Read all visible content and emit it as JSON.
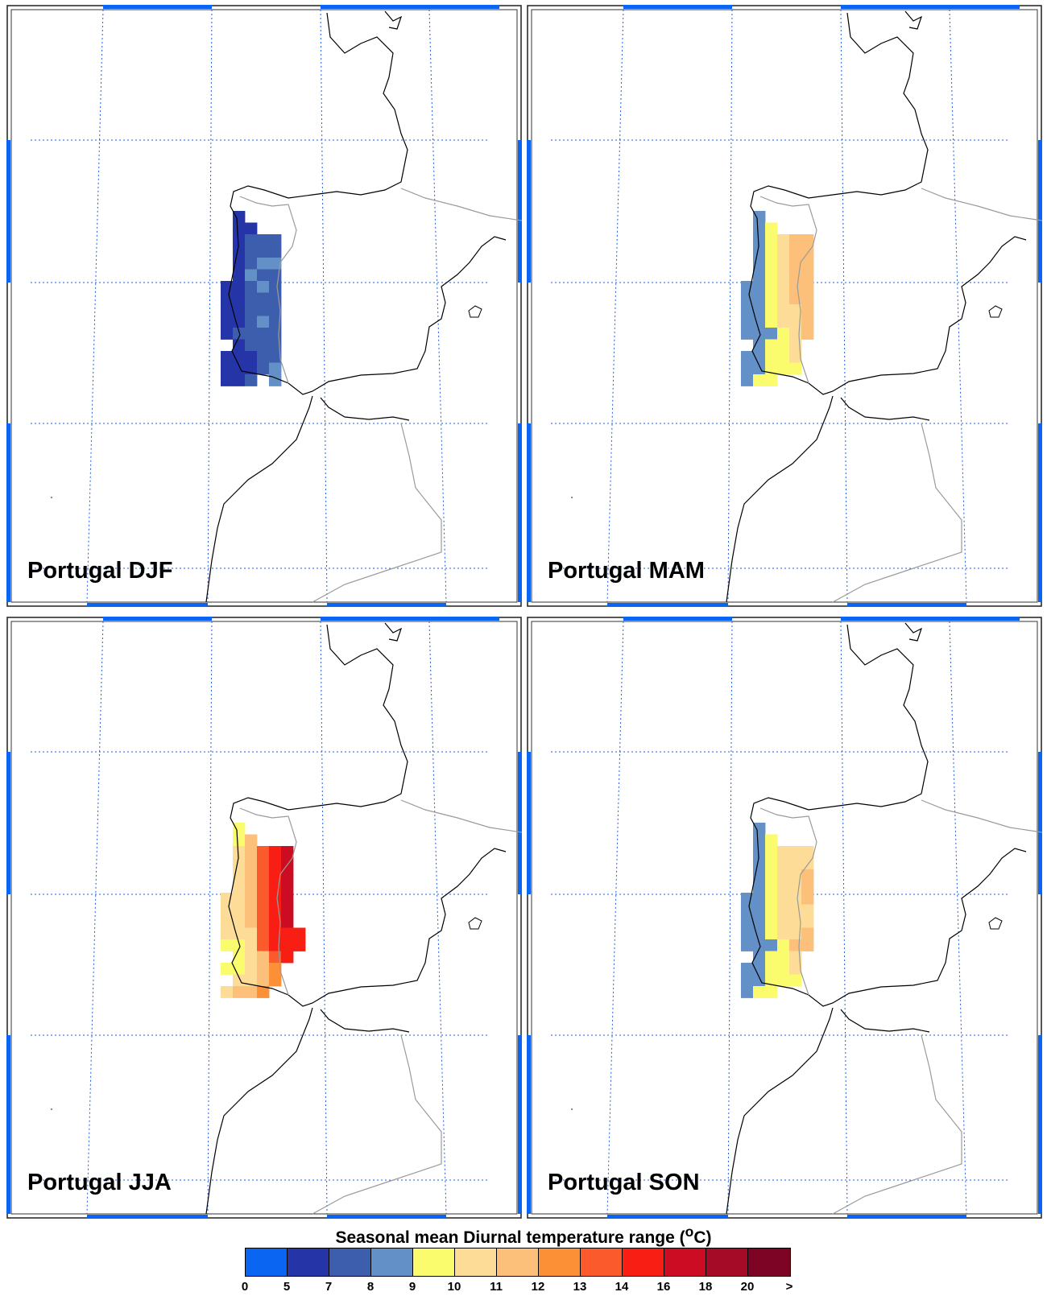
{
  "panels": [
    {
      "label": "Portugal DJF"
    },
    {
      "label": "Portugal MAM"
    },
    {
      "label": "Portugal JJA"
    },
    {
      "label": "Portugal SON"
    }
  ],
  "legend": {
    "title_main": "Seasonal mean Diurnal temperature range (",
    "title_sup": "o",
    "title_end": "C)",
    "colors": [
      "#0a66f2",
      "#2535a8",
      "#3d5eac",
      "#6490c8",
      "#fbfb6e",
      "#fcdc96",
      "#fdc07a",
      "#fb9036",
      "#fb5a2c",
      "#f81e14",
      "#cc0c22",
      "#a50a26",
      "#7d0424"
    ],
    "ticks": [
      "0",
      "5",
      "7",
      "8",
      "9",
      "10",
      "11",
      "12",
      "13",
      "14",
      "16",
      "18",
      "20",
      ">"
    ]
  },
  "colors": {
    "frame": "#0a66f2",
    "grid": "#1f5fe8",
    "coast": "#000000",
    "border": "#9a9a9a"
  }
}
